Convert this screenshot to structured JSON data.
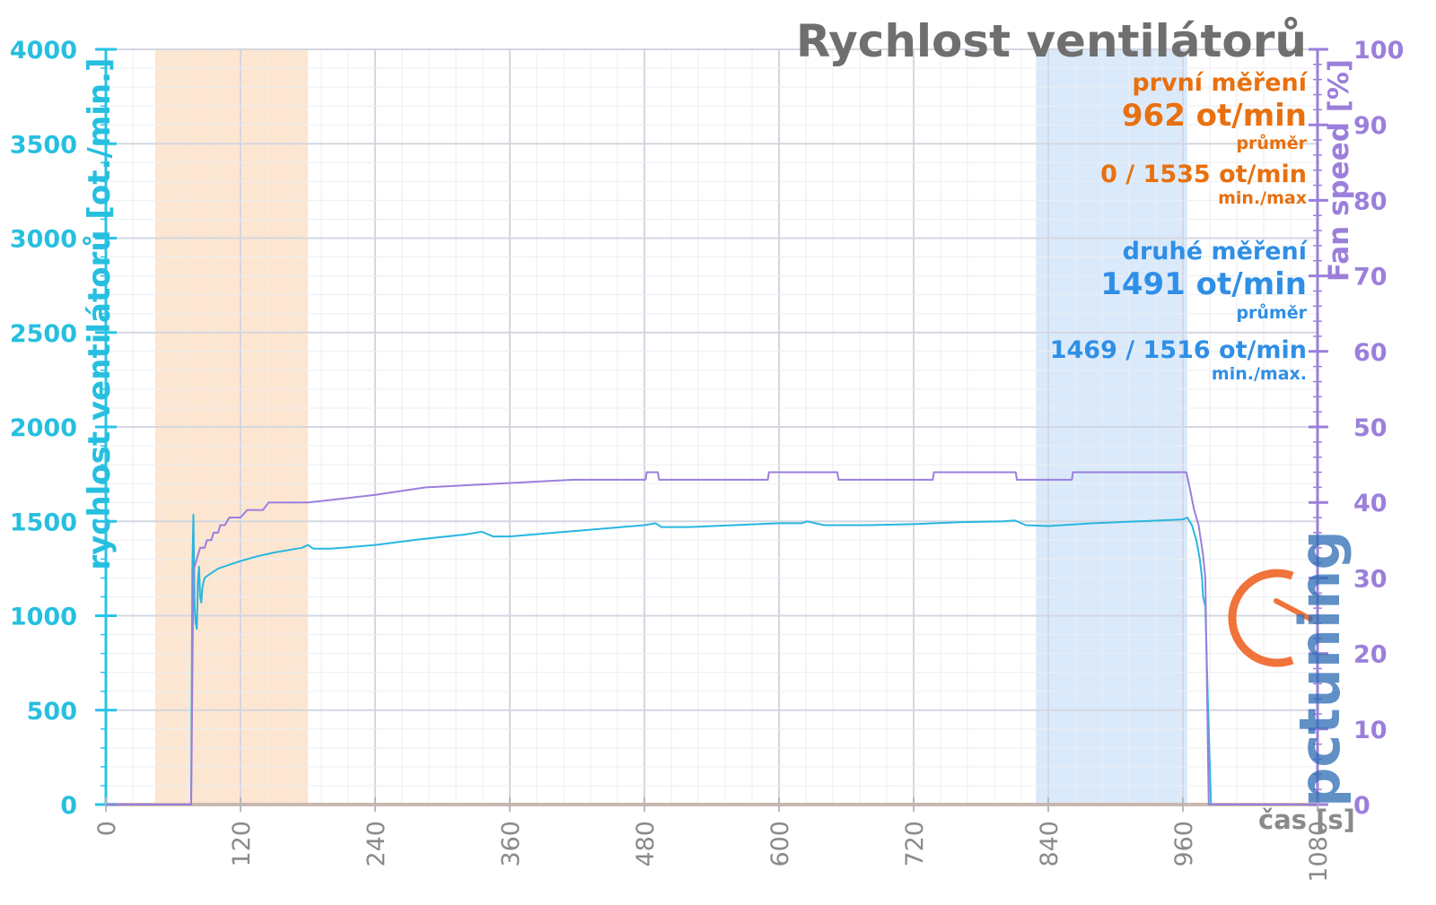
{
  "chart_data": {
    "type": "line",
    "title": "Rychlost ventilátorů",
    "xlabel": "čas [s]",
    "ylabel": "rychlost ventilátorů [ot./min.]",
    "ylabel_right": "Fan speed [%]",
    "xlim": [
      0,
      1080
    ],
    "ylim": [
      0,
      4000
    ],
    "ylim_right": [
      0,
      100
    ],
    "x_ticks": [
      "0",
      "120",
      "240",
      "360",
      "480",
      "600",
      "720",
      "840",
      "960",
      "1080"
    ],
    "y_ticks": [
      "0",
      "500",
      "1000",
      "1500",
      "2000",
      "2500",
      "3000",
      "3500",
      "4000"
    ],
    "y_ticks_right": [
      "0",
      "10",
      "20",
      "30",
      "40",
      "50",
      "60",
      "70",
      "80",
      "90",
      "100"
    ],
    "grid": true,
    "highlight_ranges": [
      {
        "x": [
          44,
          180
        ],
        "color": "#fde3cc"
      },
      {
        "x": [
          829,
          964
        ],
        "color": "#d6e8fb"
      }
    ],
    "series": [
      {
        "axis": "left",
        "color": "#29b6e0",
        "x": [
          0,
          76,
          77,
          78,
          79,
          80,
          81,
          82,
          83,
          84,
          85,
          86,
          87,
          88,
          90,
          95,
          100,
          110,
          120,
          135,
          150,
          165,
          175,
          180,
          185,
          200,
          240,
          280,
          320,
          335,
          345,
          360,
          400,
          440,
          480,
          490,
          495,
          520,
          560,
          600,
          620,
          625,
          640,
          680,
          720,
          760,
          800,
          810,
          820,
          840,
          880,
          920,
          960,
          964,
          968,
          972,
          975,
          977,
          978,
          980,
          982,
          985,
          1080
        ],
        "values": [
          0,
          0,
          1250,
          1535,
          1050,
          960,
          930,
          1180,
          1260,
          1100,
          1070,
          1150,
          1180,
          1200,
          1210,
          1230,
          1250,
          1270,
          1290,
          1315,
          1335,
          1350,
          1360,
          1375,
          1355,
          1355,
          1375,
          1405,
          1430,
          1445,
          1420,
          1420,
          1440,
          1460,
          1480,
          1490,
          1470,
          1470,
          1480,
          1490,
          1490,
          1500,
          1480,
          1480,
          1485,
          1495,
          1500,
          1505,
          1480,
          1475,
          1490,
          1500,
          1510,
          1520,
          1480,
          1400,
          1300,
          1200,
          1100,
          1050,
          600,
          0,
          0
        ]
      },
      {
        "axis": "right",
        "color": "#9b7fdb",
        "x": [
          0,
          76,
          78,
          82,
          84,
          88,
          90,
          94,
          96,
          100,
          102,
          106,
          110,
          120,
          126,
          140,
          145,
          160,
          165,
          175,
          180,
          240,
          285,
          416,
          425,
          481,
          482,
          492,
          493,
          590,
          591,
          652,
          653,
          737,
          738,
          811,
          812,
          861,
          862,
          963,
          966,
          970,
          974,
          978,
          980,
          983,
          1080
        ],
        "values": [
          0,
          0,
          31,
          33,
          34,
          34,
          35,
          35,
          36,
          36,
          37,
          37,
          38,
          38,
          39,
          39,
          40,
          40,
          40,
          40,
          40,
          41,
          42,
          43,
          43,
          43,
          44,
          44,
          43,
          43,
          44,
          44,
          43,
          43,
          44,
          44,
          43,
          43,
          44,
          44,
          42,
          39,
          37,
          33,
          30,
          0,
          0
        ]
      }
    ]
  },
  "stats": {
    "first": {
      "label": "první měření",
      "avg": "962 ot/min",
      "avg_label": "průměr",
      "minmax": "0 / 1535 ot/min",
      "minmax_label": "min./max",
      "color": "#e8700f"
    },
    "second": {
      "label": "druhé měření",
      "avg": "1491 ot/min",
      "avg_label": "průměr",
      "minmax": "1469 / 1516 ot/min",
      "minmax_label": "min./max.",
      "color": "#2f8fe6"
    }
  },
  "logo": {
    "text": "pctuning",
    "colors": {
      "accent": "#f0733a",
      "main": "#2b6cb3"
    }
  }
}
